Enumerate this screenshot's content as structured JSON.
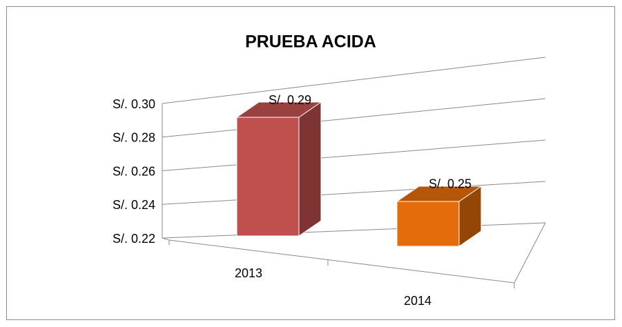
{
  "chart_data": {
    "type": "bar3d",
    "title": "PRUEBA ACIDA",
    "categories": [
      "2013",
      "2014"
    ],
    "values": [
      0.29,
      0.25
    ],
    "value_labels": [
      "S/. 0.29",
      "S/. 0.25"
    ],
    "colors": [
      "#c0504d",
      "#e46c0a"
    ],
    "ylim": [
      0.22,
      0.3
    ],
    "yticks": [
      {
        "value": 0.22,
        "label": "S/. 0.22"
      },
      {
        "value": 0.24,
        "label": "S/. 0.24"
      },
      {
        "value": 0.26,
        "label": "S/. 0.26"
      },
      {
        "value": 0.28,
        "label": "S/. 0.28"
      },
      {
        "value": 0.3,
        "label": "S/. 0.30"
      }
    ],
    "grid": true
  }
}
